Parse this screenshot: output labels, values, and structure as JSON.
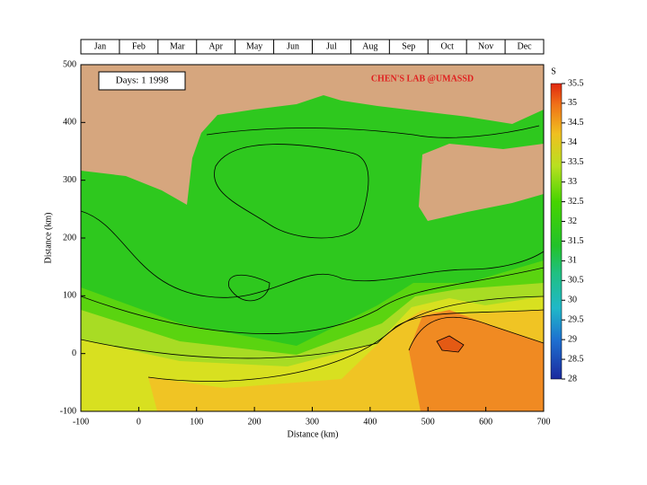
{
  "timeline": {
    "months": [
      "Jan",
      "Feb",
      "Mar",
      "Apr",
      "May",
      "Jun",
      "Jul",
      "Aug",
      "Sep",
      "Oct",
      "Nov",
      "Dec"
    ]
  },
  "map": {
    "date_label": "Days:  1   1998",
    "credit": "CHEN'S  LAB @UMASSD",
    "xlabel": "Distance (km)",
    "ylabel": "Distance (km)",
    "xlim": [
      -100,
      700
    ],
    "ylim": [
      -100,
      500
    ],
    "xticks": [
      -100,
      0,
      100,
      200,
      300,
      400,
      500,
      600,
      700
    ],
    "yticks": [
      -100,
      0,
      100,
      200,
      300,
      400,
      500
    ]
  },
  "colorbar": {
    "label": "S",
    "lim": [
      28,
      35.5
    ],
    "ticks": [
      28,
      28.5,
      29,
      29.5,
      30,
      30.5,
      31,
      31.5,
      32,
      32.5,
      33,
      33.5,
      34,
      34.5,
      35,
      35.5
    ]
  }
}
